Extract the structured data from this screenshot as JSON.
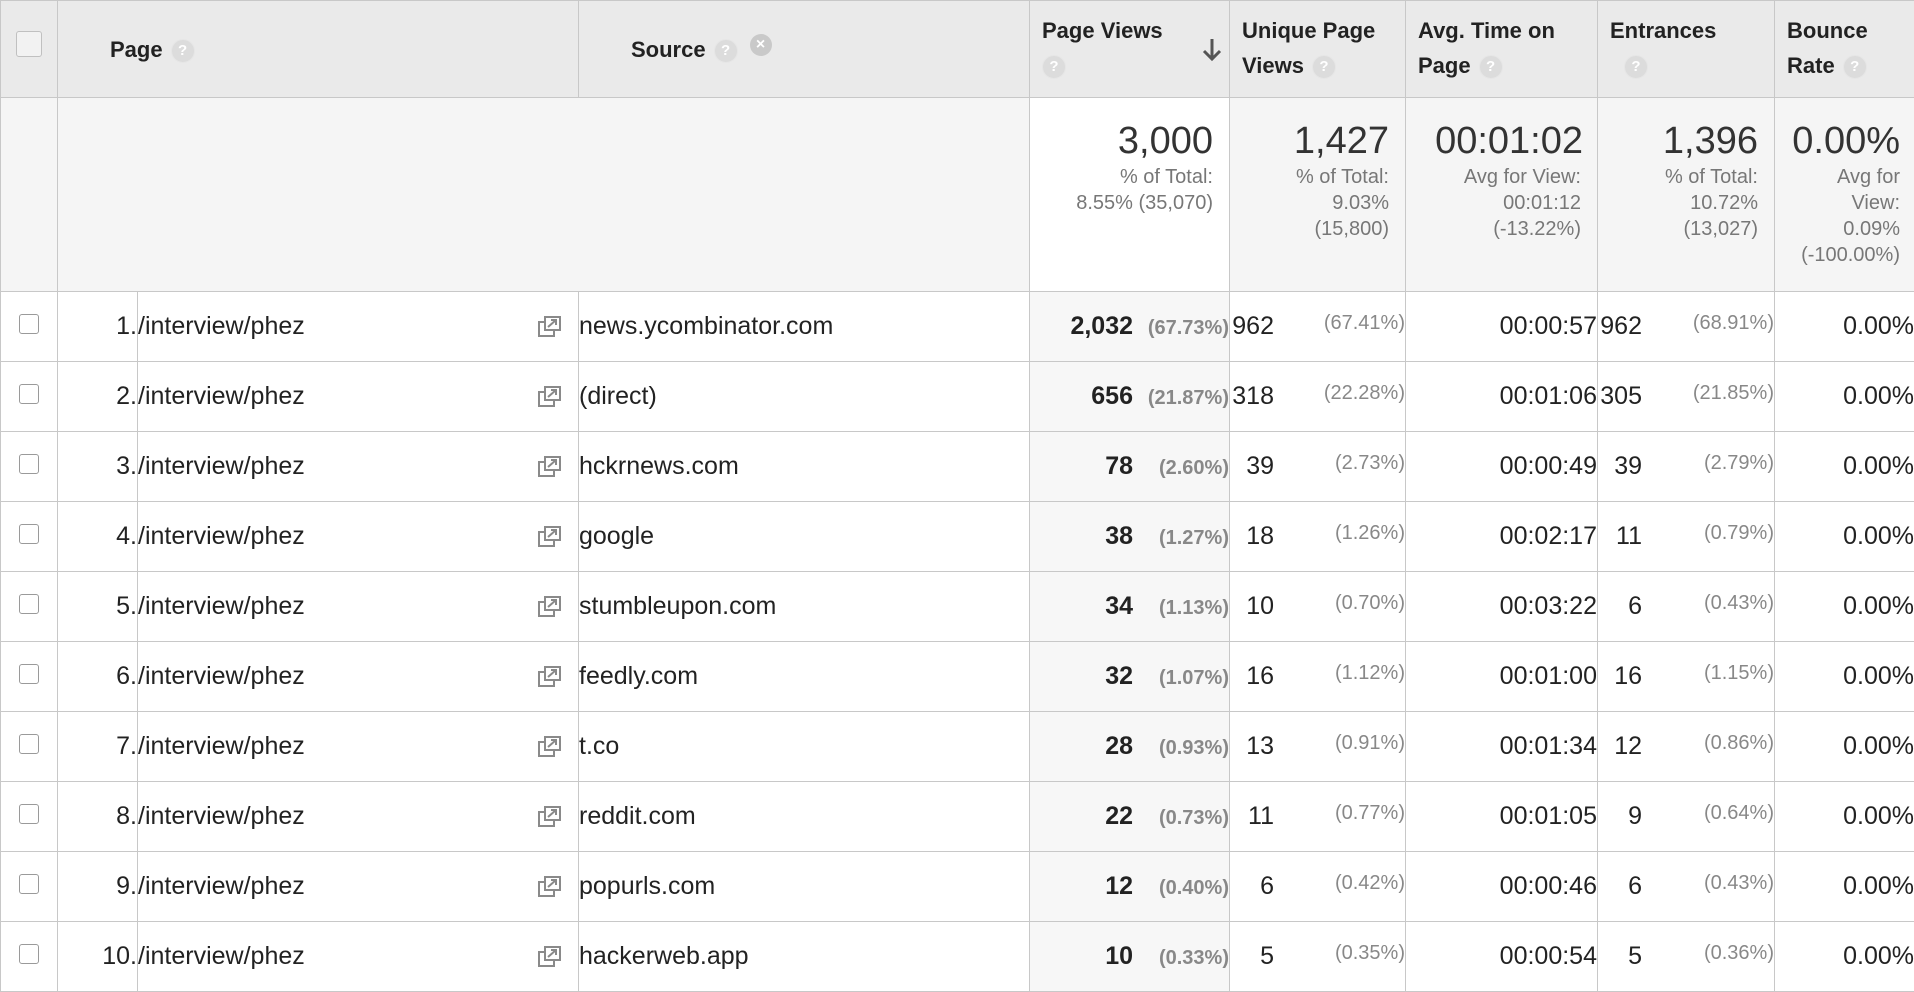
{
  "columns": {
    "page": "Page",
    "source": "Source",
    "page_views": "Page Views",
    "unique_page_views_1": "Unique Page",
    "unique_page_views_2": "Views",
    "avg_time_1": "Avg. Time on",
    "avg_time_2": "Page",
    "entrances": "Entrances",
    "bounce_rate_1": "Bounce",
    "bounce_rate_2": "Rate",
    "help_icon_text": "?",
    "remove_icon_text": "×"
  },
  "totals": {
    "page_views": {
      "value": "3,000",
      "l1": "% of Total:",
      "l2": "8.55% (35,070)"
    },
    "unique_page_views": {
      "value": "1,427",
      "l1": "% of Total:",
      "l2": "9.03%",
      "l3": "(15,800)"
    },
    "avg_time": {
      "value": "00:01:02",
      "l1": "Avg for View:",
      "l2": "00:01:12",
      "l3": "(-13.22%)"
    },
    "entrances": {
      "value": "1,396",
      "l1": "% of Total:",
      "l2": "10.72%",
      "l3": "(13,027)"
    },
    "bounce_rate": {
      "value": "0.00%",
      "l1": "Avg for",
      "l2": "View:",
      "l3": "0.09%",
      "l4": "(-100.00%)"
    }
  },
  "rows": [
    {
      "idx": "1.",
      "page": "/interview/phez",
      "source": "news.ycombinator.com",
      "pv": "2,032",
      "pv_pct": "(67.73%)",
      "upv": "962",
      "upv_pct": "(67.41%)",
      "time": "00:00:57",
      "ent": "962",
      "ent_pct": "(68.91%)",
      "bounce": "0.00%"
    },
    {
      "idx": "2.",
      "page": "/interview/phez",
      "source": "(direct)",
      "pv": "656",
      "pv_pct": "(21.87%)",
      "upv": "318",
      "upv_pct": "(22.28%)",
      "time": "00:01:06",
      "ent": "305",
      "ent_pct": "(21.85%)",
      "bounce": "0.00%"
    },
    {
      "idx": "3.",
      "page": "/interview/phez",
      "source": "hckrnews.com",
      "pv": "78",
      "pv_pct": "(2.60%)",
      "upv": "39",
      "upv_pct": "(2.73%)",
      "time": "00:00:49",
      "ent": "39",
      "ent_pct": "(2.79%)",
      "bounce": "0.00%"
    },
    {
      "idx": "4.",
      "page": "/interview/phez",
      "source": "google",
      "pv": "38",
      "pv_pct": "(1.27%)",
      "upv": "18",
      "upv_pct": "(1.26%)",
      "time": "00:02:17",
      "ent": "11",
      "ent_pct": "(0.79%)",
      "bounce": "0.00%"
    },
    {
      "idx": "5.",
      "page": "/interview/phez",
      "source": "stumbleupon.com",
      "pv": "34",
      "pv_pct": "(1.13%)",
      "upv": "10",
      "upv_pct": "(0.70%)",
      "time": "00:03:22",
      "ent": "6",
      "ent_pct": "(0.43%)",
      "bounce": "0.00%"
    },
    {
      "idx": "6.",
      "page": "/interview/phez",
      "source": "feedly.com",
      "pv": "32",
      "pv_pct": "(1.07%)",
      "upv": "16",
      "upv_pct": "(1.12%)",
      "time": "00:01:00",
      "ent": "16",
      "ent_pct": "(1.15%)",
      "bounce": "0.00%"
    },
    {
      "idx": "7.",
      "page": "/interview/phez",
      "source": "t.co",
      "pv": "28",
      "pv_pct": "(0.93%)",
      "upv": "13",
      "upv_pct": "(0.91%)",
      "time": "00:01:34",
      "ent": "12",
      "ent_pct": "(0.86%)",
      "bounce": "0.00%"
    },
    {
      "idx": "8.",
      "page": "/interview/phez",
      "source": "reddit.com",
      "pv": "22",
      "pv_pct": "(0.73%)",
      "upv": "11",
      "upv_pct": "(0.77%)",
      "time": "00:01:05",
      "ent": "9",
      "ent_pct": "(0.64%)",
      "bounce": "0.00%"
    },
    {
      "idx": "9.",
      "page": "/interview/phez",
      "source": "popurls.com",
      "pv": "12",
      "pv_pct": "(0.40%)",
      "upv": "6",
      "upv_pct": "(0.42%)",
      "time": "00:00:46",
      "ent": "6",
      "ent_pct": "(0.43%)",
      "bounce": "0.00%"
    },
    {
      "idx": "10.",
      "page": "/interview/phez",
      "source": "hackerweb.app",
      "pv": "10",
      "pv_pct": "(0.33%)",
      "upv": "5",
      "upv_pct": "(0.35%)",
      "time": "00:00:54",
      "ent": "5",
      "ent_pct": "(0.36%)",
      "bounce": "0.00%"
    }
  ]
}
